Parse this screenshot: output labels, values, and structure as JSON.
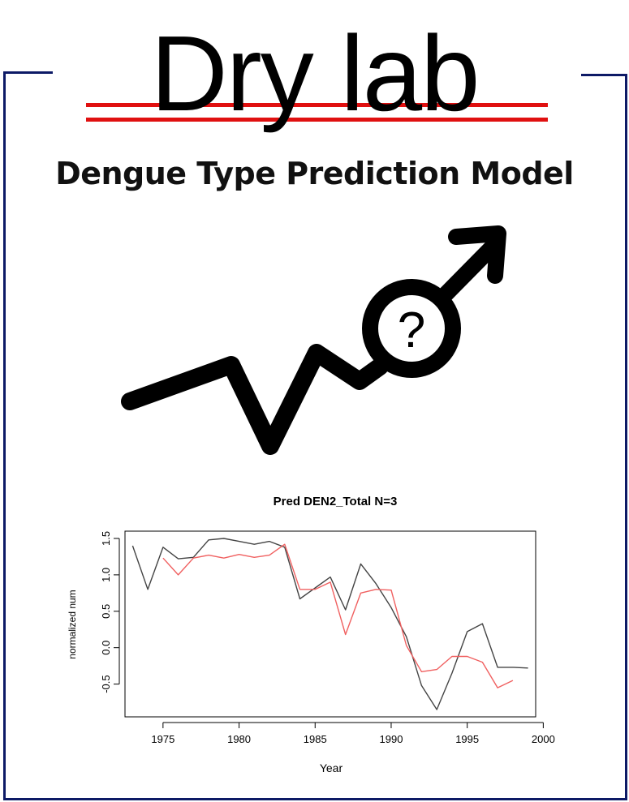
{
  "header": {
    "title": "Dry lab",
    "subtitle": "Dengue Type Prediction Model"
  },
  "icons": {
    "trend": "trend-question-icon",
    "question_mark": "?"
  },
  "colors": {
    "frame": "#0d1a66",
    "accent": "#e01010",
    "actual_series": "#444444",
    "predicted_series": "#f06060"
  },
  "chart_data": {
    "type": "line",
    "title": "Pred DEN2_Total N=3",
    "xlabel": "Year",
    "ylabel": "normalized num",
    "xlim": [
      1972.5,
      1999.5
    ],
    "ylim": [
      -0.95,
      1.6
    ],
    "xticks": [
      1975,
      1980,
      1985,
      1990,
      1995,
      2000
    ],
    "yticks": [
      -0.5,
      0.0,
      0.5,
      1.0,
      1.5
    ],
    "ytick_labels": [
      "-0.5",
      "0.0",
      "0.5",
      "1.0",
      "1.5"
    ],
    "grid": false,
    "series": [
      {
        "color": "#444444",
        "points": [
          [
            1973,
            1.4
          ],
          [
            1974,
            0.8
          ],
          [
            1975,
            1.38
          ],
          [
            1976,
            1.22
          ],
          [
            1977,
            1.24
          ],
          [
            1978,
            1.48
          ],
          [
            1979,
            1.5
          ],
          [
            1980,
            1.46
          ],
          [
            1981,
            1.42
          ],
          [
            1982,
            1.46
          ],
          [
            1983,
            1.38
          ],
          [
            1984,
            0.67
          ],
          [
            1985,
            0.82
          ],
          [
            1986,
            0.97
          ],
          [
            1987,
            0.52
          ],
          [
            1988,
            1.15
          ],
          [
            1989,
            0.88
          ],
          [
            1990,
            0.55
          ],
          [
            1991,
            0.15
          ],
          [
            1992,
            -0.52
          ],
          [
            1993,
            -0.85
          ],
          [
            1994,
            -0.35
          ],
          [
            1995,
            0.22
          ],
          [
            1996,
            0.33
          ],
          [
            1997,
            -0.27
          ],
          [
            1998,
            -0.27
          ],
          [
            1999,
            -0.28
          ]
        ]
      },
      {
        "color": "#f06060",
        "points": [
          [
            1975,
            1.23
          ],
          [
            1976,
            1.0
          ],
          [
            1977,
            1.23
          ],
          [
            1978,
            1.27
          ],
          [
            1979,
            1.23
          ],
          [
            1980,
            1.28
          ],
          [
            1981,
            1.24
          ],
          [
            1982,
            1.27
          ],
          [
            1983,
            1.42
          ],
          [
            1984,
            0.8
          ],
          [
            1985,
            0.8
          ],
          [
            1986,
            0.9
          ],
          [
            1987,
            0.18
          ],
          [
            1988,
            0.75
          ],
          [
            1989,
            0.8
          ],
          [
            1990,
            0.79
          ],
          [
            1991,
            0.03
          ],
          [
            1992,
            -0.33
          ],
          [
            1993,
            -0.3
          ],
          [
            1994,
            -0.12
          ],
          [
            1995,
            -0.12
          ],
          [
            1996,
            -0.2
          ],
          [
            1997,
            -0.55
          ],
          [
            1998,
            -0.45
          ]
        ]
      }
    ]
  }
}
